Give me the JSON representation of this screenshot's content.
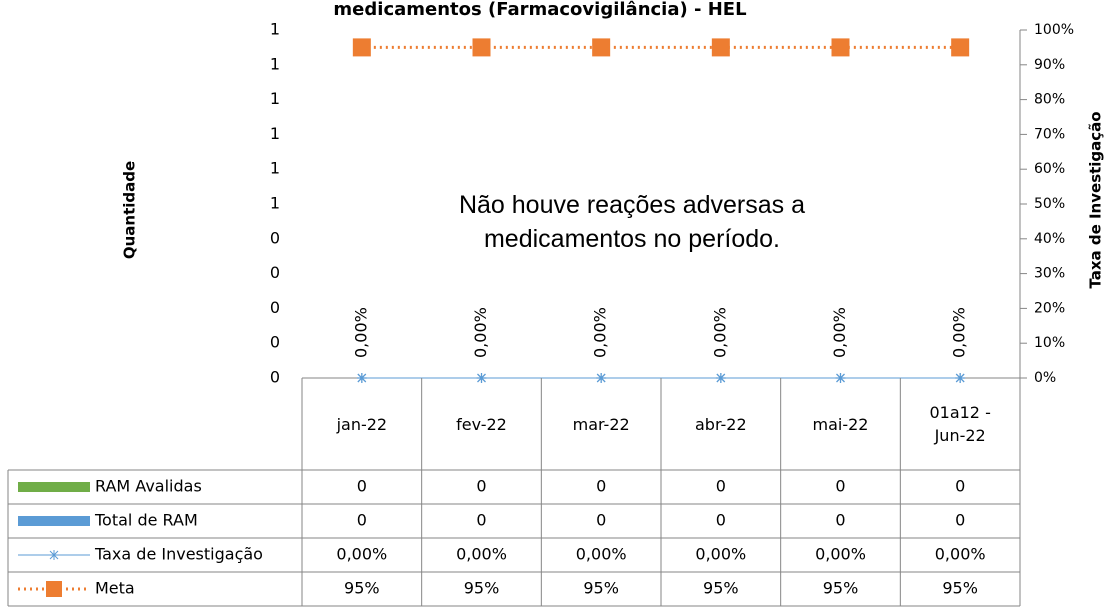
{
  "chart_data": {
    "type": "combo",
    "title": "medicamentos (Farmacovigilância) - HEL",
    "annotation": "Não houve reações adversas a medicamentos no período.",
    "ylabel": "Quantidade",
    "y2label": "Taxa de Investigação",
    "categories": [
      "jan-22",
      "fev-22",
      "mar-22",
      "abr-22",
      "mai-22",
      "01a12 - Jun-22"
    ],
    "series": [
      {
        "name": "RAM Avalidas",
        "type": "bar",
        "color": "#70ad47",
        "values": [
          0,
          0,
          0,
          0,
          0,
          0
        ]
      },
      {
        "name": "Total de RAM",
        "type": "bar",
        "color": "#5b9bd5",
        "values": [
          0,
          0,
          0,
          0,
          0,
          0
        ]
      },
      {
        "name": "Taxa de Investigação",
        "type": "line",
        "axis": "y2",
        "color": "#5b9bd5",
        "marker": "star",
        "show_labels": true,
        "values": [
          0,
          0,
          0,
          0,
          0,
          0
        ],
        "value_labels": [
          "0,00%",
          "0,00%",
          "0,00%",
          "0,00%",
          "0,00%",
          "0,00%"
        ]
      },
      {
        "name": "Meta",
        "type": "line",
        "axis": "y2",
        "color": "#ed7d31",
        "marker": "square",
        "dotted": true,
        "values": [
          95,
          95,
          95,
          95,
          95,
          95
        ],
        "value_labels": [
          "95%",
          "95%",
          "95%",
          "95%",
          "95%",
          "95%"
        ]
      }
    ],
    "ylim": [
      0,
      1
    ],
    "yticks": [
      0,
      {
        "value": 0.1,
        "label": "0"
      },
      {
        "value": 0.2,
        "label": "0"
      },
      {
        "value": 0.3,
        "label": "0"
      },
      {
        "value": 0.4,
        "label": "0"
      },
      {
        "value": 0.5,
        "label": "1"
      },
      {
        "value": 0.6,
        "label": "1"
      },
      {
        "value": 0.7,
        "label": "1"
      },
      {
        "value": 0.8,
        "label": "1"
      },
      {
        "value": 0.9,
        "label": "1"
      },
      1
    ],
    "y2lim": [
      0,
      100
    ],
    "y2ticks": [
      {
        "value": 0,
        "label": "0%"
      },
      {
        "value": 10,
        "label": "10%"
      },
      {
        "value": 20,
        "label": "20%"
      },
      {
        "value": 30,
        "label": "30%"
      },
      {
        "value": 40,
        "label": "40%"
      },
      {
        "value": 50,
        "label": "50%"
      },
      {
        "value": 60,
        "label": "60%"
      },
      {
        "value": 70,
        "label": "70%"
      },
      {
        "value": 80,
        "label": "80%"
      },
      {
        "value": 90,
        "label": "90%"
      },
      {
        "value": 100,
        "label": "100%"
      }
    ],
    "data_table": true
  }
}
